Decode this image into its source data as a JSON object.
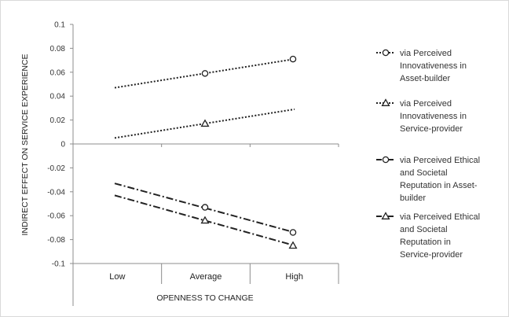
{
  "chart_data": {
    "type": "line",
    "title": "",
    "xlabel": "OPENNESS TO CHANGE",
    "ylabel": "INDIRECT EFFECT ON SERVICE EXPERIENCE",
    "categories": [
      "Low",
      "Average",
      "High"
    ],
    "ylim": [
      -0.1,
      0.1
    ],
    "yticks": [
      0.1,
      0.08,
      0.06,
      0.04,
      0.02,
      0,
      -0.02,
      -0.04,
      -0.06,
      -0.08,
      -0.1
    ],
    "ytick_labels": [
      "0.1",
      "0.08",
      "0.06",
      "0.04",
      "0.02",
      "0",
      "-0.02",
      "-0.04",
      "-0.06",
      "-0.08",
      "-0.1"
    ],
    "grid": false,
    "legend_position": "right",
    "series": [
      {
        "name": "via Perceived Innovativeness in Asset-builder",
        "legend_lines": [
          "via Perceived",
          "Innovativeness in",
          "Asset-builder"
        ],
        "values": [
          0.047,
          0.059,
          0.071
        ],
        "style": "dotted",
        "marker": "circle"
      },
      {
        "name": "via Perceived Innovativeness in Service-provider",
        "legend_lines": [
          "via Perceived",
          "Innovativeness in",
          "Service-provider"
        ],
        "values": [
          0.005,
          0.017,
          0.029
        ],
        "style": "dotted",
        "marker": "triangle"
      },
      {
        "name": "via Perceived Ethical and Societal Reputation in Asset-builder",
        "legend_lines": [
          "via Perceived Ethical",
          "and Societal",
          "Reputation in Asset-",
          "builder"
        ],
        "values": [
          -0.033,
          -0.053,
          -0.074
        ],
        "style": "dashdot",
        "marker": "circle"
      },
      {
        "name": "via Perceived Ethical and Societal Reputation in Service-provider",
        "legend_lines": [
          "via Perceived Ethical",
          "and Societal",
          "Reputation in",
          "Service-provider"
        ],
        "values": [
          -0.043,
          -0.064,
          -0.085
        ],
        "style": "dashdot",
        "marker": "triangle"
      }
    ]
  }
}
